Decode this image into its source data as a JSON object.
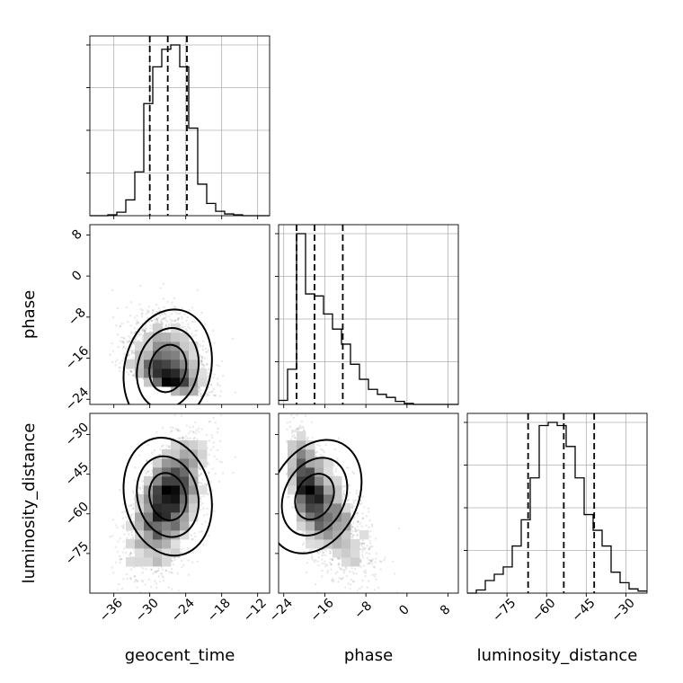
{
  "chart_data": {
    "type": "corner",
    "parameters": [
      "geocent_time",
      "phase",
      "luminosity_distance"
    ],
    "axis_labels": {
      "geocent_time": "geocent_time",
      "phase": "phase",
      "luminosity_distance": "luminosity_distance"
    },
    "ranges": {
      "geocent_time": [
        -40,
        -10
      ],
      "phase": [
        -25,
        10
      ],
      "luminosity_distance": [
        -90,
        -22
      ]
    },
    "ticks": {
      "geocent_time": [
        -36,
        -30,
        -24,
        -18,
        -12
      ],
      "phase": [
        -24,
        -16,
        -8,
        0,
        8
      ],
      "luminosity_distance": [
        -75,
        -60,
        -45,
        -30
      ]
    },
    "tick_labels": {
      "geocent_time": [
        "−36",
        "−30",
        "−24",
        "−18",
        "−12"
      ],
      "phase": [
        "−24",
        "−16",
        "−8",
        "0",
        "8"
      ],
      "luminosity_distance": [
        "−75",
        "−60",
        "−45",
        "−30"
      ]
    },
    "quantiles": {
      "geocent_time": [
        -30.0,
        -27.0,
        -23.8
      ],
      "phase": [
        -21.5,
        -18.0,
        -12.5
      ],
      "luminosity_distance": [
        -67.0,
        -53.5,
        -42.0
      ]
    },
    "histograms": {
      "geocent_time": {
        "bin_edges": [
          -40,
          -38.5,
          -37,
          -35.5,
          -34,
          -32.5,
          -31,
          -29.5,
          -28,
          -26.5,
          -25,
          -23.5,
          -22,
          -20.5,
          -19,
          -17.5,
          -16,
          -14.5,
          -13,
          -11.5,
          -10
        ],
        "counts": [
          0,
          0,
          1,
          4,
          18,
          50,
          128,
          170,
          190,
          195,
          170,
          100,
          36,
          14,
          5,
          2,
          1,
          0,
          0,
          0
        ]
      },
      "phase": {
        "bin_edges": [
          -25,
          -23.25,
          -21.5,
          -19.75,
          -18,
          -16.25,
          -14.5,
          -12.75,
          -11,
          -9.25,
          -7.5,
          -5.75,
          -4,
          -2.25,
          -0.5,
          1.25,
          3,
          4.75,
          6.5,
          8.25,
          10
        ],
        "counts": [
          4,
          35,
          170,
          110,
          108,
          90,
          75,
          60,
          40,
          25,
          15,
          10,
          7,
          3,
          1,
          0,
          0,
          0,
          0,
          0
        ]
      },
      "luminosity_distance": {
        "bin_edges": [
          -90,
          -86.6,
          -83.2,
          -79.8,
          -76.4,
          -73,
          -69.6,
          -66.2,
          -62.8,
          -59.4,
          -56,
          -52.6,
          -49.2,
          -45.8,
          -42.4,
          -39,
          -35.6,
          -32.2,
          -28.8,
          -25.4,
          -22
        ],
        "counts": [
          0,
          3,
          12,
          18,
          25,
          45,
          70,
          110,
          160,
          163,
          160,
          140,
          110,
          75,
          60,
          45,
          20,
          10,
          4,
          2
        ]
      }
    },
    "correlations": {
      "geocent_time|phase": -0.3,
      "geocent_time|luminosity_distance": 0.3,
      "phase|luminosity_distance": -0.6
    },
    "density": "grayscale 2D histogram with three black contour levels and scattered grey samples"
  }
}
